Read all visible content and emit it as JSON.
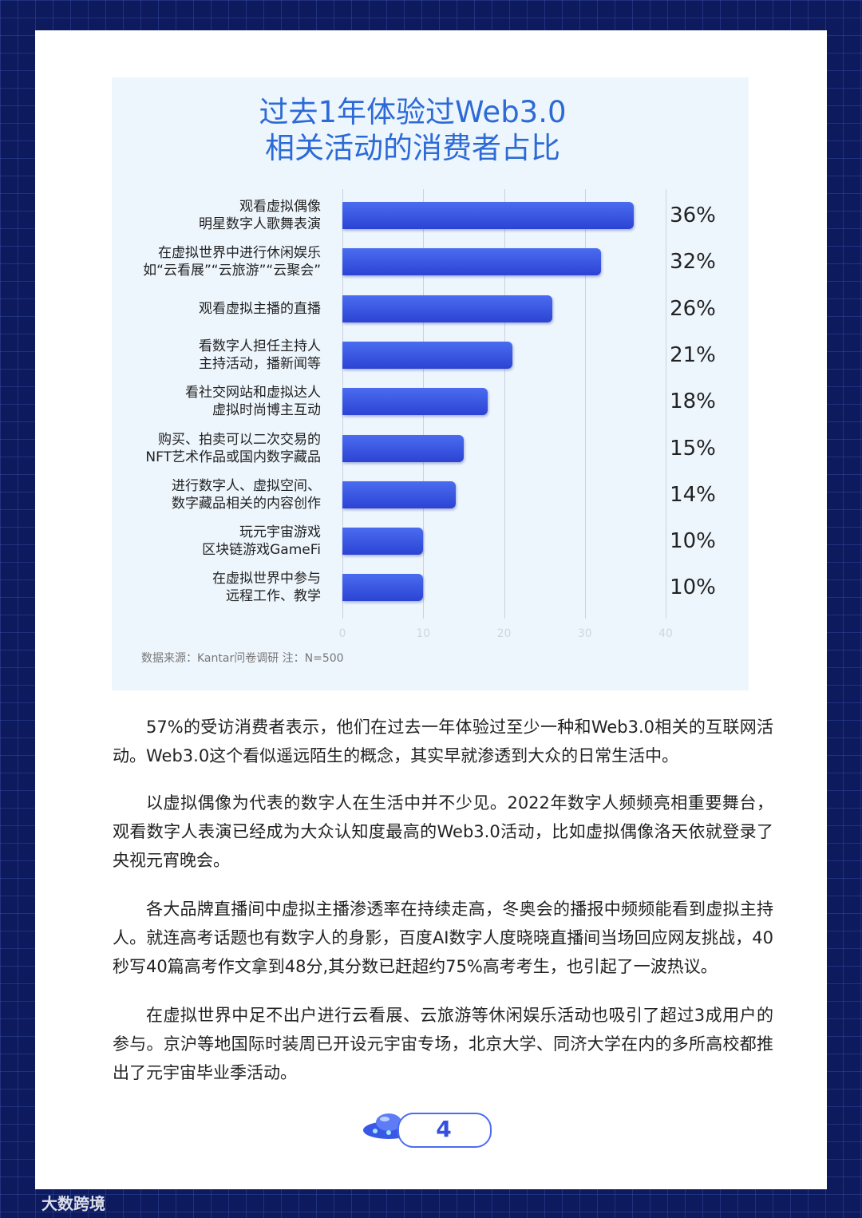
{
  "chart_data": {
    "type": "bar",
    "orientation": "horizontal",
    "title": "过去1年体验过Web3.0\n相关活动的消费者占比",
    "categories": [
      "观看虚拟偶像\n明星数字人歌舞表演",
      "在虚拟世界中进行休闲娱乐\n如“云看展”“云旅游”“云聚会”",
      "观看虚拟主播的直播",
      "看数字人担任主持人\n主持活动，播新闻等",
      "看社交网站和虚拟达人\n虚拟时尚博主互动",
      "购买、拍卖可以二次交易的\nNFT艺术作品或国内数字藏品",
      "进行数字人、虚拟空间、\n数字藏品相关的内容创作",
      "玩元宇宙游戏\n区块链游戏GameFi",
      "在虚拟世界中参与\n远程工作、教学"
    ],
    "values": [
      36,
      32,
      26,
      21,
      18,
      15,
      14,
      10,
      10
    ],
    "value_labels": [
      "36%",
      "32%",
      "26%",
      "21%",
      "18%",
      "15%",
      "14%",
      "10%",
      "10%"
    ],
    "color": "#3a58e6",
    "xlim": [
      0,
      40
    ],
    "xticks": [
      0,
      10,
      20,
      30,
      40
    ],
    "grid": true,
    "source": "数据来源：Kantar问卷调研 注：N=500"
  },
  "paragraphs": [
    "57%的受访消费者表示，他们在过去一年体验过至少一种和Web3.0相关的互联网活动。Web3.0这个看似遥远陌生的概念，其实早就渗透到大众的日常生活中。",
    "以虚拟偶像为代表的数字人在生活中并不少见。2022年数字人频频亮相重要舞台，观看数字人表演已经成为大众认知度最高的Web3.0活动，比如虚拟偶像洛天依就登录了央视元宵晚会。",
    "各大品牌直播间中虚拟主播渗透率在持续走高，冬奥会的播报中频频能看到虚拟主持人。就连高考话题也有数字人的身影，百度AI数字人度晓晓直播间当场回应网友挑战，40秒写40篇高考作文拿到48分,其分数已赶超约75%高考考生，也引起了一波热议。",
    "在虚拟世界中足不出户进行云看展、云旅游等休闲娱乐活动也吸引了超过3成用户的参与。京沪等地国际时装周已开设元宇宙专场，北京大学、同济大学在内的多所高校都推出了元宇宙毕业季活动。"
  ],
  "page_number": "4",
  "watermark": "大数跨境"
}
